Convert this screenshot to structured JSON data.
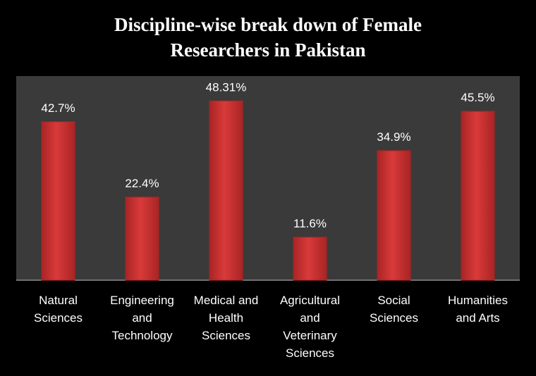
{
  "chart_data": {
    "type": "bar",
    "title_lines": [
      "Discipline-wise break down of Female",
      "Researchers in Pakistan"
    ],
    "categories": [
      [
        "Natural",
        "Sciences"
      ],
      [
        "Engineering",
        "and",
        "Technology"
      ],
      [
        "Medical and",
        "Health",
        "Sciences"
      ],
      [
        "Agricultural",
        "and",
        "Veterinary",
        "Sciences"
      ],
      [
        "Social",
        "Sciences"
      ],
      [
        "Humanities",
        "and Arts"
      ]
    ],
    "values": [
      42.7,
      22.4,
      48.31,
      11.6,
      34.9,
      45.5
    ],
    "data_labels": [
      "42.7%",
      "22.4%",
      "48.31%",
      "11.6%",
      "34.9%",
      "45.5%"
    ],
    "ylim": [
      0,
      55
    ],
    "grid": false,
    "colors": {
      "background": "#000000",
      "plot_area": "#3a3a3a",
      "bar": "#d93a3a",
      "bar_dark": "#a92424",
      "text": "#ffffff"
    }
  }
}
